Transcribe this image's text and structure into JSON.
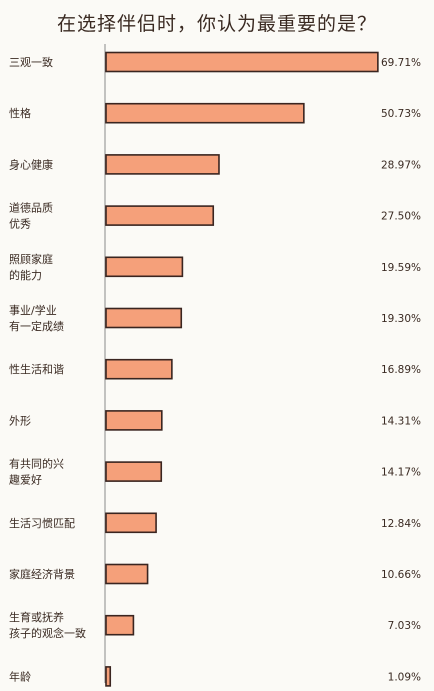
{
  "chart_data": {
    "type": "bar",
    "orientation": "horizontal",
    "title": "在选择伴侣时，你认为最重要的是？",
    "categories": [
      [
        "三观一致"
      ],
      [
        "性格"
      ],
      [
        "身心健康"
      ],
      [
        "道德品质",
        "优秀"
      ],
      [
        "照顾家庭",
        "的能力"
      ],
      [
        "事业/学业",
        "有一定成绩"
      ],
      [
        "性生活和谐"
      ],
      [
        "外形"
      ],
      [
        "有共同的兴",
        "趣爱好"
      ],
      [
        "生活习惯匹配"
      ],
      [
        "家庭经济背景"
      ],
      [
        "生育或抚养",
        "孩子的观念一致"
      ],
      [
        "年龄"
      ]
    ],
    "values": [
      69.71,
      50.73,
      28.97,
      27.5,
      19.59,
      19.3,
      16.89,
      14.31,
      14.17,
      12.84,
      10.66,
      7.03,
      1.09
    ],
    "value_labels": [
      "69.71%",
      "50.73%",
      "28.97%",
      "27.50%",
      "19.59%",
      "19.30%",
      "16.89%",
      "14.31%",
      "14.17%",
      "12.84%",
      "10.66%",
      "7.03%",
      "1.09%"
    ],
    "xlim": [
      0,
      70
    ],
    "grid": false,
    "legend": "none",
    "bar_color": "#f5a07a",
    "outline_color": "#3a2520"
  }
}
